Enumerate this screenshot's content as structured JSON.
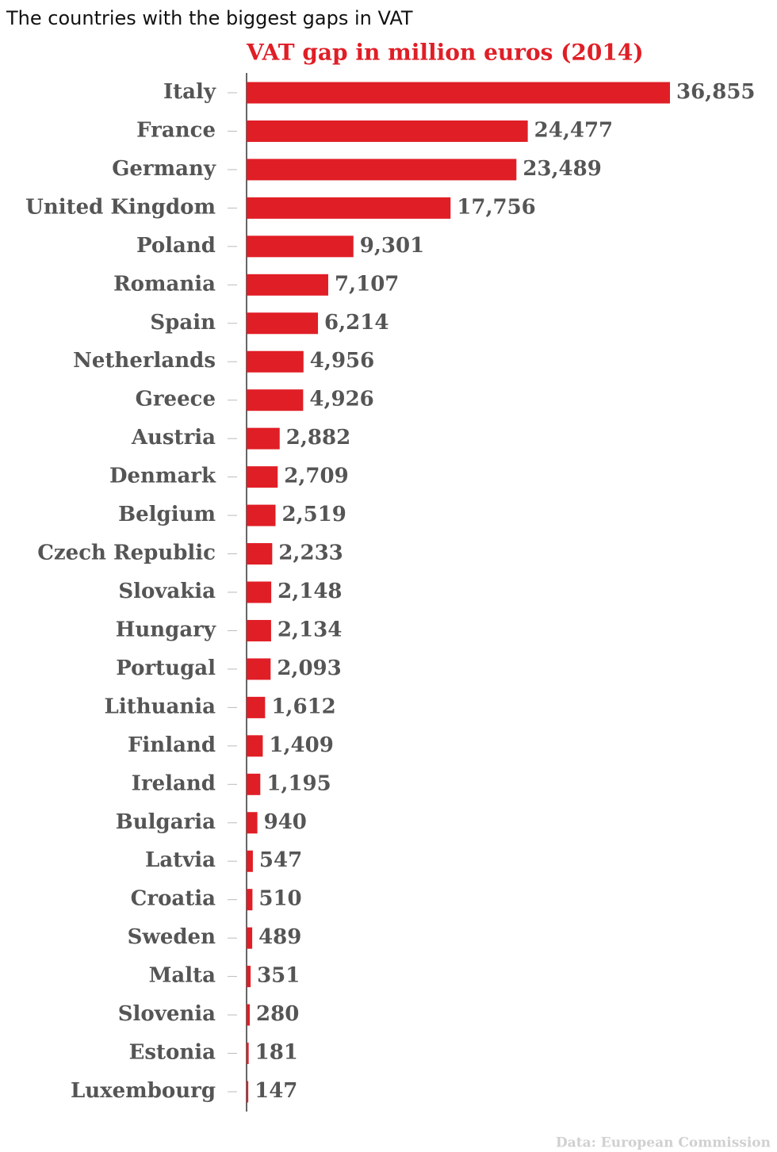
{
  "chart_data": {
    "type": "hbar",
    "title": "The countries with the biggest gaps in VAT",
    "subtitle": "VAT gap in million euros (2014)",
    "source": "Data: European Commission",
    "color": "#e01e26",
    "categories": [
      "Italy",
      "France",
      "Germany",
      "United Kingdom",
      "Poland",
      "Romania",
      "Spain",
      "Netherlands",
      "Greece",
      "Austria",
      "Denmark",
      "Belgium",
      "Czech Republic",
      "Slovakia",
      "Hungary",
      "Portugal",
      "Lithuania",
      "Finland",
      "Ireland",
      "Bulgaria",
      "Latvia",
      "Croatia",
      "Sweden",
      "Malta",
      "Slovenia",
      "Estonia",
      "Luxembourg"
    ],
    "values": [
      36855,
      24477,
      23489,
      17756,
      9301,
      7107,
      6214,
      4956,
      4926,
      2882,
      2709,
      2519,
      2233,
      2148,
      2134,
      2093,
      1612,
      1409,
      1195,
      940,
      547,
      510,
      489,
      351,
      280,
      181,
      147
    ],
    "value_labels": [
      "36,855",
      "24,477",
      "23,489",
      "17,756",
      "9,301",
      "7,107",
      "6,214",
      "4,956",
      "4,926",
      "2,882",
      "2,709",
      "2,519",
      "2,233",
      "2,148",
      "2,134",
      "2,093",
      "1,612",
      "1,409",
      "1,195",
      "940",
      "547",
      "510",
      "489",
      "351",
      "280",
      "181",
      "147"
    ],
    "xlim": [
      0,
      36855
    ]
  }
}
